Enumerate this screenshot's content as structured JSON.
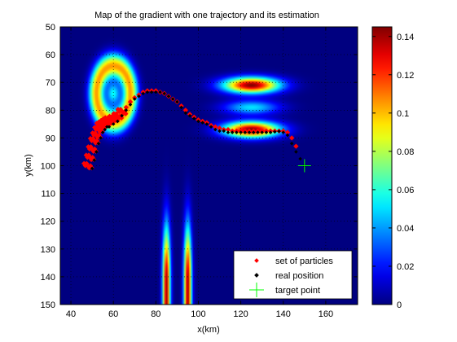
{
  "chart_data": {
    "type": "heatmap",
    "title": "Map of the gradient with one trajectory and its estimation",
    "xlabel": "x(km)",
    "ylabel": "y(km)",
    "xlim": [
      35,
      175
    ],
    "ylim": [
      50,
      150
    ],
    "y_reversed": true,
    "x_ticks": [
      40,
      60,
      80,
      100,
      120,
      140,
      160
    ],
    "y_ticks": [
      50,
      60,
      70,
      80,
      90,
      100,
      110,
      120,
      130,
      140,
      150
    ],
    "grid": true,
    "colormap": "jet",
    "colorbar": {
      "min": 0,
      "max": 0.145,
      "ticks": [
        0,
        0.02,
        0.04,
        0.06,
        0.08,
        0.1,
        0.12,
        0.14
      ]
    },
    "field_sources": [
      {
        "kind": "ring",
        "cx": 60,
        "cy": 74,
        "r": 8,
        "w": 3.5,
        "amp": 0.105,
        "hole_amp": 0.055,
        "hole_r": 3
      },
      {
        "kind": "lobes",
        "cx": 125,
        "cy": 79,
        "sx": 13,
        "dy": 8,
        "sy": 2.8,
        "amp": 0.145
      },
      {
        "kind": "vstripe",
        "cx": 85,
        "sx": 1.8,
        "peak_y": 142,
        "sy": 9,
        "amp": 0.14
      },
      {
        "kind": "vstripe",
        "cx": 95,
        "sx": 1.8,
        "peak_y": 142,
        "sy": 9,
        "amp": 0.14
      }
    ],
    "series": [
      {
        "name": "real position",
        "color": "#000000",
        "x": [
          50,
          51,
          52,
          53,
          54,
          55,
          56,
          57,
          58,
          60,
          62,
          64,
          66,
          68,
          70,
          72,
          74,
          76,
          78,
          80,
          82,
          84,
          86,
          88,
          90,
          92,
          94,
          96,
          98,
          100,
          102,
          104,
          106,
          108,
          110,
          112,
          114,
          116,
          118,
          120,
          122,
          124,
          126,
          128,
          130,
          132,
          134,
          136,
          138,
          140,
          142,
          144,
          146,
          148,
          150
        ],
        "y": [
          101,
          98,
          95,
          92,
          90,
          88,
          87,
          86,
          86,
          85,
          84,
          82,
          80,
          78,
          76,
          75,
          74,
          73.5,
          73.5,
          73.5,
          73.5,
          74,
          75,
          76,
          77,
          79,
          81,
          82,
          83,
          84,
          84.5,
          85,
          86,
          87,
          87.5,
          87.5,
          88,
          88,
          88,
          88,
          88,
          88,
          88,
          88,
          88,
          88,
          88,
          87.8,
          87.6,
          88,
          89,
          92,
          95,
          97.5,
          100
        ]
      },
      {
        "name": "set of particles",
        "color": "#ff0000",
        "x": [
          48,
          49,
          50,
          51,
          52,
          53,
          54,
          55,
          56,
          57,
          58,
          60,
          62,
          64,
          66,
          68,
          70,
          72,
          74,
          76,
          78,
          80,
          82,
          84,
          86,
          88,
          90,
          92,
          94,
          96,
          98,
          100,
          102,
          104,
          106,
          108,
          110,
          112,
          114,
          116,
          118,
          120,
          122,
          124,
          126,
          128,
          130,
          132,
          134,
          136,
          138,
          140,
          142,
          144,
          146
        ],
        "y": [
          100,
          97,
          94,
          91,
          89,
          87,
          85.5,
          85,
          84.5,
          84,
          83.5,
          83,
          82,
          80.5,
          79,
          77,
          75.5,
          74.5,
          73.5,
          73,
          73,
          73,
          73.5,
          74,
          75,
          76,
          77,
          78.5,
          80,
          81.5,
          82.5,
          83.5,
          84,
          84.5,
          85.5,
          86,
          86.5,
          87,
          87,
          87.5,
          87.5,
          87.5,
          87.5,
          87.5,
          87.5,
          87.5,
          87.5,
          87.5,
          87.5,
          87.5,
          87.5,
          87.5,
          88,
          90,
          93
        ]
      },
      {
        "name": "target point",
        "color": "#00ff00",
        "marker": "+",
        "x": [
          150
        ],
        "y": [
          100
        ]
      }
    ],
    "legend": {
      "placement": "bottom-right",
      "entries": [
        "set of particles",
        "real position",
        "target point"
      ]
    }
  }
}
